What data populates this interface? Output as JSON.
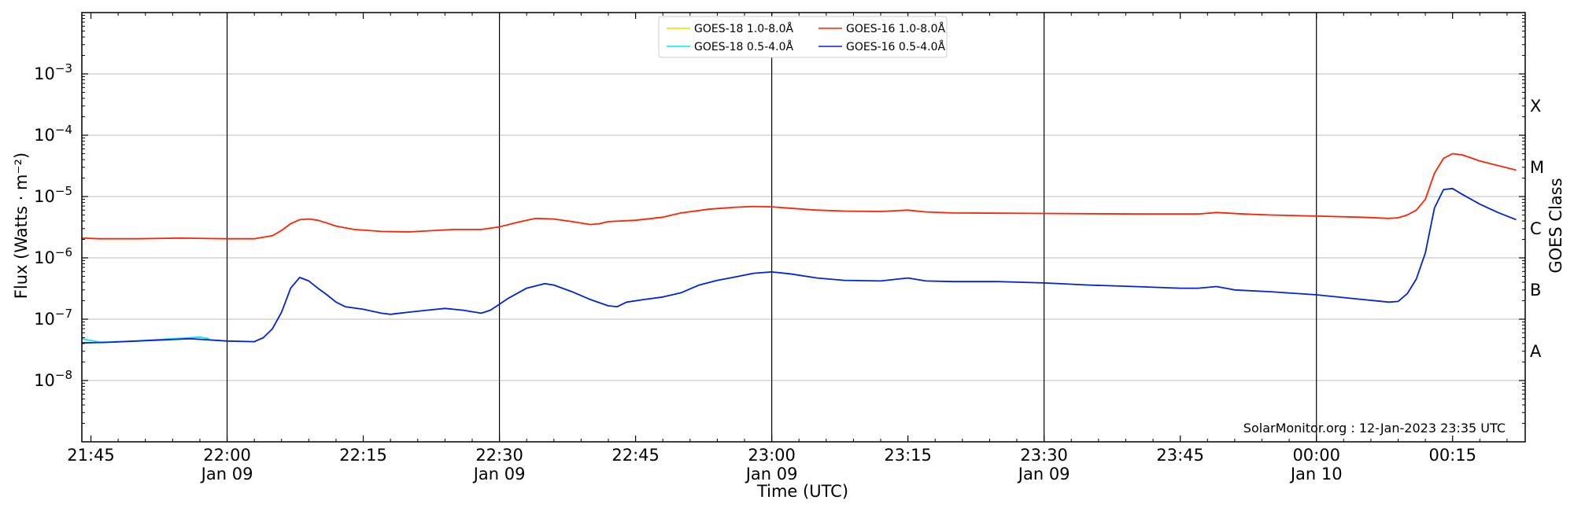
{
  "chart_data": {
    "type": "line",
    "title": "",
    "xlabel": "Time (UTC)",
    "ylabel": "Flux (Watts · m⁻²)",
    "y2label": "GOES Class",
    "y_scale": "log",
    "ylim": [
      1e-09,
      0.01
    ],
    "xlim": [
      "2023-01-09 21:44",
      "2023-01-10 00:23"
    ],
    "grid": "horizontal at decades, vertical at half-hours",
    "legend_position": "top-center",
    "credit": "SolarMonitor.org : 12-Jan-2023 23:35 UTC",
    "y_ticks": [
      {
        "value": 1e-08,
        "base": "10",
        "exp": "−8"
      },
      {
        "value": 1e-07,
        "base": "10",
        "exp": "−7"
      },
      {
        "value": 1e-06,
        "base": "10",
        "exp": "−6"
      },
      {
        "value": 1e-05,
        "base": "10",
        "exp": "−5"
      },
      {
        "value": 0.0001,
        "base": "10",
        "exp": "−4"
      },
      {
        "value": 0.001,
        "base": "10",
        "exp": "−3"
      }
    ],
    "x_ticks": [
      {
        "time": "2023-01-09 21:45",
        "label": "21:45",
        "sublabel": ""
      },
      {
        "time": "2023-01-09 22:00",
        "label": "22:00",
        "sublabel": "Jan 09"
      },
      {
        "time": "2023-01-09 22:15",
        "label": "22:15",
        "sublabel": ""
      },
      {
        "time": "2023-01-09 22:30",
        "label": "22:30",
        "sublabel": "Jan 09"
      },
      {
        "time": "2023-01-09 22:45",
        "label": "22:45",
        "sublabel": ""
      },
      {
        "time": "2023-01-09 23:00",
        "label": "23:00",
        "sublabel": "Jan 09"
      },
      {
        "time": "2023-01-09 23:15",
        "label": "23:15",
        "sublabel": ""
      },
      {
        "time": "2023-01-09 23:30",
        "label": "23:30",
        "sublabel": "Jan 09"
      },
      {
        "time": "2023-01-09 23:45",
        "label": "23:45",
        "sublabel": ""
      },
      {
        "time": "2023-01-10 00:00",
        "label": "00:00",
        "sublabel": "Jan 10"
      },
      {
        "time": "2023-01-10 00:15",
        "label": "00:15",
        "sublabel": ""
      }
    ],
    "goes_classes": [
      {
        "label": "A",
        "value": 3e-08
      },
      {
        "label": "B",
        "value": 3e-07
      },
      {
        "label": "C",
        "value": 3e-06
      },
      {
        "label": "M",
        "value": 3e-05
      },
      {
        "label": "X",
        "value": 0.0003
      }
    ],
    "series": [
      {
        "name": "GOES-18 1.0-8.0Å",
        "color": "#ffd700",
        "points": []
      },
      {
        "name": "GOES-18 0.5-4.0Å",
        "color": "#00e5ff",
        "points": [
          [
            "2023-01-09 21:44",
            4.8e-08
          ],
          [
            "2023-01-09 21:46",
            4.2e-08
          ],
          [
            "2023-01-09 21:48",
            4.3e-08
          ],
          [
            "2023-01-09 21:50",
            4.4e-08
          ],
          [
            "2023-01-09 21:52",
            4.6e-08
          ],
          [
            "2023-01-09 21:54",
            4.8e-08
          ],
          [
            "2023-01-09 21:56",
            5e-08
          ],
          [
            "2023-01-09 21:57",
            5.1e-08
          ],
          [
            "2023-01-09 21:58",
            4.8e-08
          ]
        ]
      },
      {
        "name": "GOES-16 1.0-8.0Å",
        "color": "#ff2200",
        "points": [
          [
            "2023-01-09 21:44",
            2.1e-06
          ],
          [
            "2023-01-09 21:46",
            2.05e-06
          ],
          [
            "2023-01-09 21:50",
            2.05e-06
          ],
          [
            "2023-01-09 21:55",
            2.1e-06
          ],
          [
            "2023-01-09 22:00",
            2.05e-06
          ],
          [
            "2023-01-09 22:03",
            2.05e-06
          ],
          [
            "2023-01-09 22:05",
            2.3e-06
          ],
          [
            "2023-01-09 22:06",
            2.8e-06
          ],
          [
            "2023-01-09 22:07",
            3.6e-06
          ],
          [
            "2023-01-09 22:08",
            4.2e-06
          ],
          [
            "2023-01-09 22:09",
            4.3e-06
          ],
          [
            "2023-01-09 22:10",
            4.1e-06
          ],
          [
            "2023-01-09 22:11",
            3.7e-06
          ],
          [
            "2023-01-09 22:12",
            3.3e-06
          ],
          [
            "2023-01-09 22:14",
            2.9e-06
          ],
          [
            "2023-01-09 22:17",
            2.7e-06
          ],
          [
            "2023-01-09 22:20",
            2.65e-06
          ],
          [
            "2023-01-09 22:23",
            2.8e-06
          ],
          [
            "2023-01-09 22:25",
            2.9e-06
          ],
          [
            "2023-01-09 22:28",
            2.9e-06
          ],
          [
            "2023-01-09 22:30",
            3.2e-06
          ],
          [
            "2023-01-09 22:32",
            3.8e-06
          ],
          [
            "2023-01-09 22:34",
            4.4e-06
          ],
          [
            "2023-01-09 22:36",
            4.3e-06
          ],
          [
            "2023-01-09 22:38",
            3.9e-06
          ],
          [
            "2023-01-09 22:40",
            3.5e-06
          ],
          [
            "2023-01-09 22:41",
            3.6e-06
          ],
          [
            "2023-01-09 22:42",
            3.9e-06
          ],
          [
            "2023-01-09 22:45",
            4.1e-06
          ],
          [
            "2023-01-09 22:48",
            4.6e-06
          ],
          [
            "2023-01-09 22:50",
            5.4e-06
          ],
          [
            "2023-01-09 22:53",
            6.2e-06
          ],
          [
            "2023-01-09 22:56",
            6.7e-06
          ],
          [
            "2023-01-09 22:58",
            6.9e-06
          ],
          [
            "2023-01-09 23:00",
            6.8e-06
          ],
          [
            "2023-01-09 23:03",
            6.3e-06
          ],
          [
            "2023-01-09 23:05",
            6e-06
          ],
          [
            "2023-01-09 23:08",
            5.8e-06
          ],
          [
            "2023-01-09 23:12",
            5.7e-06
          ],
          [
            "2023-01-09 23:15",
            6e-06
          ],
          [
            "2023-01-09 23:17",
            5.6e-06
          ],
          [
            "2023-01-09 23:20",
            5.4e-06
          ],
          [
            "2023-01-09 23:30",
            5.3e-06
          ],
          [
            "2023-01-09 23:40",
            5.2e-06
          ],
          [
            "2023-01-09 23:47",
            5.2e-06
          ],
          [
            "2023-01-09 23:49",
            5.5e-06
          ],
          [
            "2023-01-09 23:52",
            5.2e-06
          ],
          [
            "2023-01-09 23:55",
            5e-06
          ],
          [
            "2023-01-10 00:00",
            4.8e-06
          ],
          [
            "2023-01-10 00:05",
            4.6e-06
          ],
          [
            "2023-01-10 00:08",
            4.4e-06
          ],
          [
            "2023-01-10 00:09",
            4.5e-06
          ],
          [
            "2023-01-10 00:10",
            5e-06
          ],
          [
            "2023-01-10 00:11",
            6e-06
          ],
          [
            "2023-01-10 00:12",
            9e-06
          ],
          [
            "2023-01-10 00:13",
            2.4e-05
          ],
          [
            "2023-01-10 00:14",
            4.2e-05
          ],
          [
            "2023-01-10 00:15",
            5e-05
          ],
          [
            "2023-01-10 00:16",
            4.8e-05
          ],
          [
            "2023-01-10 00:17",
            4.3e-05
          ],
          [
            "2023-01-10 00:18",
            3.8e-05
          ],
          [
            "2023-01-10 00:20",
            3.2e-05
          ],
          [
            "2023-01-10 00:22",
            2.7e-05
          ]
        ]
      },
      {
        "name": "GOES-16 0.5-4.0Å",
        "color": "#0022dd",
        "points": [
          [
            "2023-01-09 21:44",
            4.1e-08
          ],
          [
            "2023-01-09 21:47",
            4.2e-08
          ],
          [
            "2023-01-09 21:50",
            4.4e-08
          ],
          [
            "2023-01-09 21:53",
            4.6e-08
          ],
          [
            "2023-01-09 21:56",
            4.8e-08
          ],
          [
            "2023-01-09 21:58",
            4.6e-08
          ],
          [
            "2023-01-09 22:00",
            4.4e-08
          ],
          [
            "2023-01-09 22:03",
            4.3e-08
          ],
          [
            "2023-01-09 22:04",
            5e-08
          ],
          [
            "2023-01-09 22:05",
            7e-08
          ],
          [
            "2023-01-09 22:06",
            1.3e-07
          ],
          [
            "2023-01-09 22:07",
            3.2e-07
          ],
          [
            "2023-01-09 22:08",
            4.8e-07
          ],
          [
            "2023-01-09 22:09",
            4.2e-07
          ],
          [
            "2023-01-09 22:10",
            3.2e-07
          ],
          [
            "2023-01-09 22:11",
            2.5e-07
          ],
          [
            "2023-01-09 22:12",
            1.9e-07
          ],
          [
            "2023-01-09 22:13",
            1.6e-07
          ],
          [
            "2023-01-09 22:15",
            1.45e-07
          ],
          [
            "2023-01-09 22:17",
            1.25e-07
          ],
          [
            "2023-01-09 22:18",
            1.2e-07
          ],
          [
            "2023-01-09 22:20",
            1.3e-07
          ],
          [
            "2023-01-09 22:22",
            1.4e-07
          ],
          [
            "2023-01-09 22:24",
            1.5e-07
          ],
          [
            "2023-01-09 22:26",
            1.4e-07
          ],
          [
            "2023-01-09 22:28",
            1.25e-07
          ],
          [
            "2023-01-09 22:29",
            1.4e-07
          ],
          [
            "2023-01-09 22:31",
            2.2e-07
          ],
          [
            "2023-01-09 22:33",
            3.2e-07
          ],
          [
            "2023-01-09 22:35",
            3.8e-07
          ],
          [
            "2023-01-09 22:36",
            3.6e-07
          ],
          [
            "2023-01-09 22:38",
            2.8e-07
          ],
          [
            "2023-01-09 22:40",
            2.1e-07
          ],
          [
            "2023-01-09 22:42",
            1.65e-07
          ],
          [
            "2023-01-09 22:43",
            1.6e-07
          ],
          [
            "2023-01-09 22:44",
            1.9e-07
          ],
          [
            "2023-01-09 22:46",
            2.1e-07
          ],
          [
            "2023-01-09 22:48",
            2.3e-07
          ],
          [
            "2023-01-09 22:50",
            2.7e-07
          ],
          [
            "2023-01-09 22:52",
            3.6e-07
          ],
          [
            "2023-01-09 22:54",
            4.3e-07
          ],
          [
            "2023-01-09 22:56",
            4.9e-07
          ],
          [
            "2023-01-09 22:58",
            5.6e-07
          ],
          [
            "2023-01-09 23:00",
            5.9e-07
          ],
          [
            "2023-01-09 23:02",
            5.5e-07
          ],
          [
            "2023-01-09 23:05",
            4.7e-07
          ],
          [
            "2023-01-09 23:08",
            4.3e-07
          ],
          [
            "2023-01-09 23:12",
            4.2e-07
          ],
          [
            "2023-01-09 23:15",
            4.7e-07
          ],
          [
            "2023-01-09 23:17",
            4.2e-07
          ],
          [
            "2023-01-09 23:20",
            4.1e-07
          ],
          [
            "2023-01-09 23:25",
            4.1e-07
          ],
          [
            "2023-01-09 23:30",
            3.9e-07
          ],
          [
            "2023-01-09 23:35",
            3.6e-07
          ],
          [
            "2023-01-09 23:40",
            3.4e-07
          ],
          [
            "2023-01-09 23:45",
            3.2e-07
          ],
          [
            "2023-01-09 23:47",
            3.2e-07
          ],
          [
            "2023-01-09 23:49",
            3.4e-07
          ],
          [
            "2023-01-09 23:51",
            3e-07
          ],
          [
            "2023-01-09 23:55",
            2.8e-07
          ],
          [
            "2023-01-10 00:00",
            2.5e-07
          ],
          [
            "2023-01-10 00:05",
            2.1e-07
          ],
          [
            "2023-01-10 00:08",
            1.9e-07
          ],
          [
            "2023-01-10 00:09",
            1.95e-07
          ],
          [
            "2023-01-10 00:10",
            2.6e-07
          ],
          [
            "2023-01-10 00:11",
            4.5e-07
          ],
          [
            "2023-01-10 00:12",
            1.2e-06
          ],
          [
            "2023-01-10 00:13",
            6.5e-06
          ],
          [
            "2023-01-10 00:14",
            1.3e-05
          ],
          [
            "2023-01-10 00:15",
            1.35e-05
          ],
          [
            "2023-01-10 00:16",
            1.1e-05
          ],
          [
            "2023-01-10 00:18",
            7.5e-06
          ],
          [
            "2023-01-10 00:20",
            5.5e-06
          ],
          [
            "2023-01-10 00:22",
            4.2e-06
          ]
        ]
      }
    ]
  }
}
